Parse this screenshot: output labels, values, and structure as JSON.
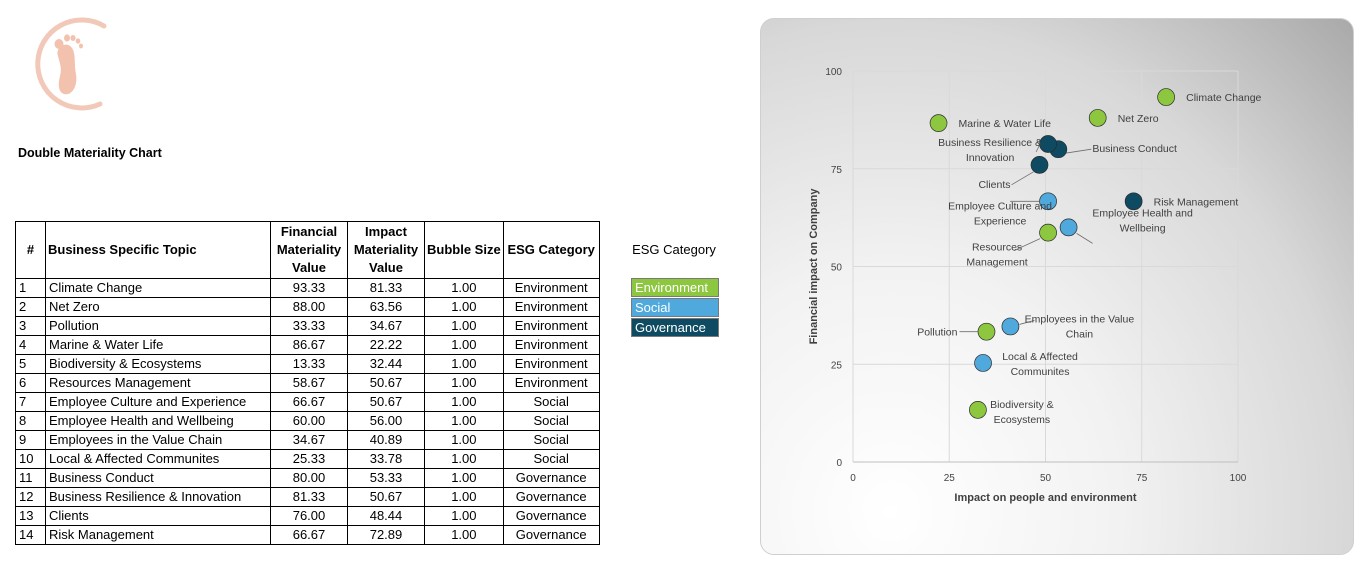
{
  "page_title": "Double Materiality Chart",
  "table": {
    "headers": {
      "num": "#",
      "topic": "Business Specific Topic",
      "financial": [
        "Financial",
        "Materiality",
        "Value"
      ],
      "impact": [
        "Impact",
        "Materiality",
        "Value"
      ],
      "bubble": "Bubble Size",
      "category": "ESG Category"
    },
    "rows": [
      {
        "num": "1",
        "topic": "Climate Change",
        "financial": "93.33",
        "impact": "81.33",
        "bubble": "1.00",
        "category": "Environment"
      },
      {
        "num": "2",
        "topic": "Net Zero",
        "financial": "88.00",
        "impact": "63.56",
        "bubble": "1.00",
        "category": "Environment"
      },
      {
        "num": "3",
        "topic": "Pollution",
        "financial": "33.33",
        "impact": "34.67",
        "bubble": "1.00",
        "category": "Environment"
      },
      {
        "num": "4",
        "topic": "Marine & Water Life",
        "financial": "86.67",
        "impact": "22.22",
        "bubble": "1.00",
        "category": "Environment"
      },
      {
        "num": "5",
        "topic": "Biodiversity & Ecosystems",
        "financial": "13.33",
        "impact": "32.44",
        "bubble": "1.00",
        "category": "Environment"
      },
      {
        "num": "6",
        "topic": "Resources Management",
        "financial": "58.67",
        "impact": "50.67",
        "bubble": "1.00",
        "category": "Environment"
      },
      {
        "num": "7",
        "topic": "Employee Culture and Experience",
        "financial": "66.67",
        "impact": "50.67",
        "bubble": "1.00",
        "category": "Social"
      },
      {
        "num": "8",
        "topic": "Employee Health and Wellbeing",
        "financial": "60.00",
        "impact": "56.00",
        "bubble": "1.00",
        "category": "Social"
      },
      {
        "num": "9",
        "topic": "Employees in the Value Chain",
        "financial": "34.67",
        "impact": "40.89",
        "bubble": "1.00",
        "category": "Social"
      },
      {
        "num": "10",
        "topic": "Local & Affected Communites",
        "financial": "25.33",
        "impact": "33.78",
        "bubble": "1.00",
        "category": "Social"
      },
      {
        "num": "11",
        "topic": "Business Conduct",
        "financial": "80.00",
        "impact": "53.33",
        "bubble": "1.00",
        "category": "Governance"
      },
      {
        "num": "12",
        "topic": "Business Resilience & Innovation",
        "financial": "81.33",
        "impact": "50.67",
        "bubble": "1.00",
        "category": "Governance"
      },
      {
        "num": "13",
        "topic": "Clients",
        "financial": "76.00",
        "impact": "48.44",
        "bubble": "1.00",
        "category": "Governance"
      },
      {
        "num": "14",
        "topic": "Risk Management",
        "financial": "66.67",
        "impact": "72.89",
        "bubble": "1.00",
        "category": "Governance"
      }
    ]
  },
  "legend": {
    "title": "ESG Category",
    "items": [
      {
        "label": "Environment",
        "color": "#8DC63F"
      },
      {
        "label": "Social",
        "color": "#4FA9DC"
      },
      {
        "label": "Governance",
        "color": "#0E4B63"
      }
    ]
  },
  "chart_data": {
    "type": "scatter",
    "xlabel": "Impact on people and environment",
    "ylabel": "Financial impact on Company",
    "xlim": [
      0,
      100
    ],
    "ylim": [
      0,
      100
    ],
    "xticks": [
      "0",
      "25",
      "50",
      "75",
      "100"
    ],
    "yticks": [
      "0",
      "25",
      "50",
      "75",
      "100"
    ],
    "grid": true,
    "colors": {
      "Environment": "#8DC63F",
      "Social": "#4FA9DC",
      "Governance": "#0E4B63"
    },
    "points": [
      {
        "label": "Climate Change",
        "x": 81.33,
        "y": 93.33,
        "category": "Environment"
      },
      {
        "label": "Net Zero",
        "x": 63.56,
        "y": 88.0,
        "category": "Environment"
      },
      {
        "label": "Pollution",
        "x": 34.67,
        "y": 33.33,
        "category": "Environment"
      },
      {
        "label": "Marine & Water Life",
        "x": 22.22,
        "y": 86.67,
        "category": "Environment"
      },
      {
        "label": "Biodiversity & Ecosystems",
        "x": 32.44,
        "y": 13.33,
        "category": "Environment"
      },
      {
        "label": "Resources Management",
        "x": 50.67,
        "y": 58.67,
        "category": "Environment"
      },
      {
        "label": "Employee Culture and Experience",
        "x": 50.67,
        "y": 66.67,
        "category": "Social"
      },
      {
        "label": "Employee Health and Wellbeing",
        "x": 56.0,
        "y": 60.0,
        "category": "Social"
      },
      {
        "label": "Employees in the Value Chain",
        "x": 40.89,
        "y": 34.67,
        "category": "Social"
      },
      {
        "label": "Local & Affected Communites",
        "x": 33.78,
        "y": 25.33,
        "category": "Social"
      },
      {
        "label": "Business Conduct",
        "x": 53.33,
        "y": 80.0,
        "category": "Governance"
      },
      {
        "label": "Business Resilience & Innovation",
        "x": 50.67,
        "y": 81.33,
        "category": "Governance"
      },
      {
        "label": "Clients",
        "x": 48.44,
        "y": 76.0,
        "category": "Governance"
      },
      {
        "label": "Risk Management",
        "x": 72.89,
        "y": 66.67,
        "category": "Governance"
      }
    ],
    "point_labels": [
      [
        "Climate Change"
      ],
      [
        "Net Zero"
      ],
      [
        "Pollution"
      ],
      [
        "Marine & Water Life"
      ],
      [
        "Biodiversity &",
        "Ecosystems"
      ],
      [
        "Resources",
        "Management"
      ],
      [
        "Employee Culture and",
        "Experience"
      ],
      [
        "Employee Health and",
        "Wellbeing"
      ],
      [
        "Employees in the Value",
        "Chain"
      ],
      [
        "Local & Affected",
        "Communites"
      ],
      [
        "Business Conduct"
      ],
      [
        "Business Resilience &",
        "Innovation"
      ],
      [
        "Clients"
      ],
      [
        "Risk Management"
      ]
    ]
  }
}
